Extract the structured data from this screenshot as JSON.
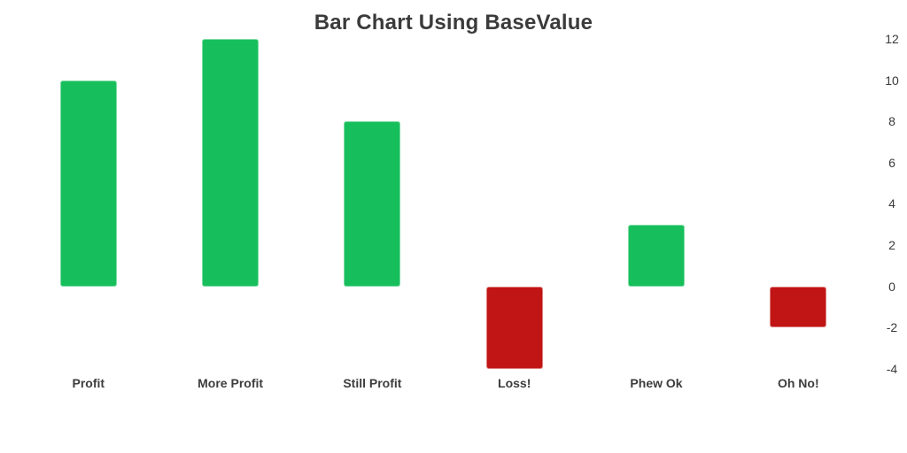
{
  "title": "Bar Chart Using BaseValue",
  "colors": {
    "positive_bar": "#17bf5c",
    "negative_bar": "#c11414",
    "title_text": "#3b3b3b",
    "axis_text": "#3a3a3a",
    "background": "#ffffff"
  },
  "chart_data": {
    "type": "bar",
    "title": "Bar Chart Using BaseValue",
    "categories": [
      "Profit",
      "More Profit",
      "Still Profit",
      "Loss!",
      "Phew Ok",
      "Oh No!"
    ],
    "values": [
      10,
      12,
      8,
      -4,
      3,
      -2
    ],
    "base_value": 0,
    "xlabel": "",
    "ylabel": "",
    "ylim": [
      -4,
      12
    ],
    "y_ticks": [
      12,
      10,
      8,
      6,
      4,
      2,
      0,
      -2,
      -4
    ],
    "y_axis_position": "right",
    "grid": false,
    "legend": false,
    "positive_color": "#17bf5c",
    "negative_color": "#c11414"
  }
}
